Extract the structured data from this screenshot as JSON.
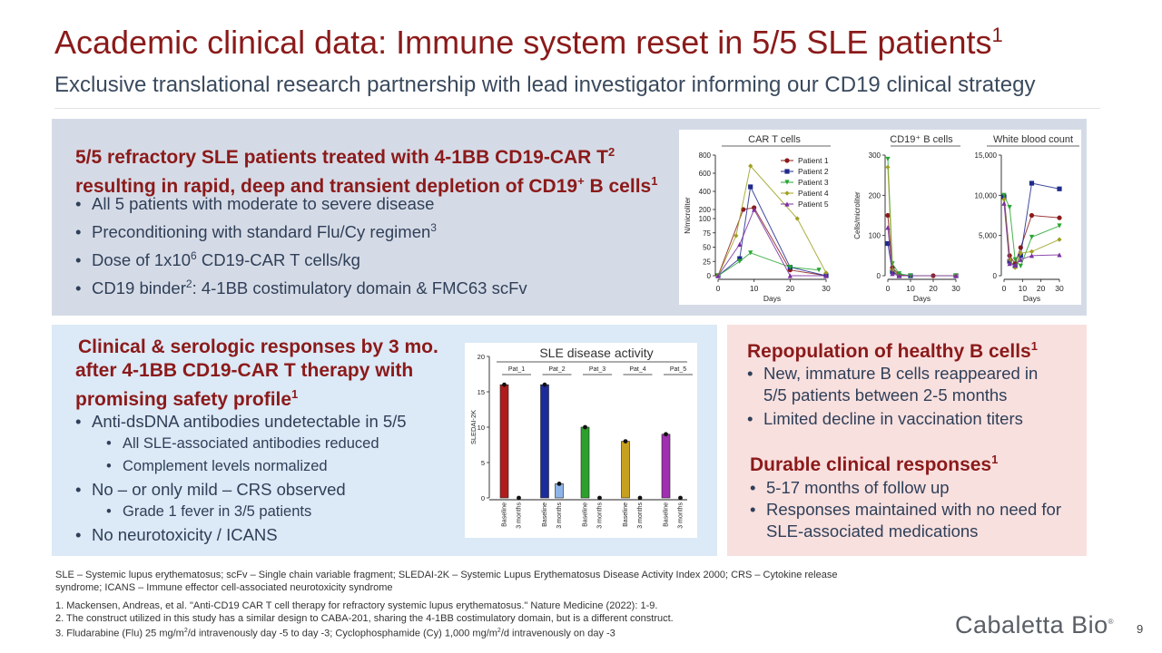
{
  "header": {
    "title": "Academic clinical data: Immune system reset in 5/5 SLE patients",
    "title_sup": "1",
    "subtitle": "Exclusive translational research partnership with lead investigator informing our CD19 clinical strategy"
  },
  "top_panel": {
    "heading_line1": "5/5 refractory SLE patients treated with 4-1BB CD19-CAR T",
    "heading_line1_sup": "2",
    "heading_line2_a": "resulting in rapid, deep and transient depletion of CD19",
    "heading_line2_sup_plus": "+",
    "heading_line2_b": " B cells",
    "heading_line2_sup": "1",
    "bullets": {
      "b1": "All 5 patients with moderate to severe disease",
      "b2": "Preconditioning with standard Flu/Cy regimen",
      "b2_sup": "3",
      "b3_a": "Dose of 1x10",
      "b3_sup": "6",
      "b3_b": " CD19-CAR T cells/kg",
      "b4_a": "CD19 binder",
      "b4_sup": "2",
      "b4_b": ": 4-1BB costimulatory domain & FMC63 scFv"
    }
  },
  "left_panel": {
    "heading_line1": "Clinical & serologic responses by 3 mo.",
    "heading_line2": "after 4-1BB CD19-CAR T therapy with",
    "heading_line3": "promising safety profile",
    "heading_sup": "1",
    "b1": "Anti-dsDNA antibodies undetectable in 5/5",
    "b1a": "All SLE-associated antibodies reduced",
    "b1b": "Complement levels normalized",
    "b2": "No – or only mild – CRS observed",
    "b2a": "Grade 1 fever in 3/5 patients",
    "b3": "No neurotoxicity / ICANS"
  },
  "right_panel": {
    "heading1": "Repopulation of healthy B cells",
    "heading1_sup": "1",
    "r1_line1": "New, immature B cells reappeared in",
    "r1_line2": "5/5 patients between 2-5 months",
    "r2": "Limited decline in vaccination titers",
    "heading2": "Durable clinical responses",
    "heading2_sup": "1",
    "d1": "5-17 months of follow up",
    "d2_line1": "Responses maintained with no need for",
    "d2_line2": "SLE-associated medications"
  },
  "footnotes": {
    "abbrev_line1": "SLE – Systemic lupus erythematosus; scFv – Single chain variable fragment; SLEDAI-2K – Systemic Lupus Erythematosus Disease Activity Index 2000; CRS – Cytokine release",
    "abbrev_line2": "syndrome; ICANS – Immune effector cell-associated neurotoxicity syndrome",
    "ref1": "1. Mackensen, Andreas, et al. \"Anti-CD19 CAR T cell therapy for refractory systemic lupus erythematosus.\" Nature Medicine (2022): 1-9.",
    "ref2": "2. The construct utilized in this study has a similar design to CABA-201, sharing the 4-1BB costimulatory domain, but is a different construct.",
    "ref3_a": "3. Fludarabine (Flu) 25 mg/m",
    "ref3_sup1": "2",
    "ref3_b": "/d intravenously day -5 to day -3; Cyclophosphamide (Cy) 1,000 mg/m",
    "ref3_sup2": "2",
    "ref3_c": "/d intravenously on day -3"
  },
  "logo": {
    "text": "Cabaletta Bio",
    "mark": "®"
  },
  "page_number": "9",
  "chart_data": [
    {
      "type": "line",
      "title": "CAR T cells",
      "xlabel": "Days",
      "ylabel": "N/microliter",
      "x_ticks": [
        "0",
        "10",
        "20",
        "30"
      ],
      "y_ticks": [
        "0",
        "25",
        "50",
        "75",
        "100",
        "200",
        "400",
        "600",
        "800"
      ],
      "legend": [
        "Patient 1",
        "Patient 2",
        "Patient 3",
        "Patient 4",
        "Patient 5"
      ],
      "note": "broken y axis: 0-100 linear lower segment, 100-800 upper segment",
      "series": [
        {
          "name": "Patient 1",
          "color": "#8b1a1a",
          "points": [
            [
              0,
              0
            ],
            [
              7,
              200
            ],
            [
              10,
              220
            ],
            [
              20,
              10
            ],
            [
              30,
              0
            ]
          ]
        },
        {
          "name": "Patient 2",
          "color": "#1f2a8c",
          "points": [
            [
              0,
              0
            ],
            [
              6,
              30
            ],
            [
              9,
              450
            ],
            [
              20,
              15
            ],
            [
              30,
              0
            ]
          ]
        },
        {
          "name": "Patient 3",
          "color": "#27a633",
          "points": [
            [
              0,
              0
            ],
            [
              6,
              25
            ],
            [
              9,
              40
            ],
            [
              20,
              15
            ],
            [
              28,
              10
            ]
          ]
        },
        {
          "name": "Patient 4",
          "color": "#a0a020",
          "points": [
            [
              0,
              0
            ],
            [
              5,
              70
            ],
            [
              9,
              680
            ],
            [
              22,
              100
            ],
            [
              30,
              5
            ]
          ]
        },
        {
          "name": "Patient 5",
          "color": "#7a2fa0",
          "points": [
            [
              0,
              0
            ],
            [
              6,
              55
            ],
            [
              10,
              200
            ],
            [
              20,
              0
            ],
            [
              30,
              0
            ]
          ]
        }
      ]
    },
    {
      "type": "line",
      "title": "CD19⁺ B cells",
      "xlabel": "Days",
      "ylabel": "Cells/microliter",
      "x_ticks": [
        "0",
        "10",
        "20",
        "30"
      ],
      "y_ticks": [
        "0",
        "100",
        "200",
        "300"
      ],
      "ylim": [
        0,
        300
      ],
      "series": [
        {
          "name": "Patient 1",
          "color": "#8b1a1a",
          "points": [
            [
              0,
              150
            ],
            [
              2,
              20
            ],
            [
              5,
              2
            ],
            [
              10,
              0
            ],
            [
              20,
              0
            ],
            [
              30,
              0
            ]
          ]
        },
        {
          "name": "Patient 2",
          "color": "#1f2a8c",
          "points": [
            [
              0,
              80
            ],
            [
              2,
              10
            ],
            [
              5,
              0
            ],
            [
              10,
              0
            ],
            [
              30,
              0
            ]
          ]
        },
        {
          "name": "Patient 3",
          "color": "#27a633",
          "points": [
            [
              0,
              290
            ],
            [
              2,
              30
            ],
            [
              5,
              5
            ],
            [
              10,
              0
            ],
            [
              30,
              0
            ]
          ]
        },
        {
          "name": "Patient 4",
          "color": "#a0a020",
          "points": [
            [
              0,
              270
            ],
            [
              2,
              15
            ],
            [
              5,
              0
            ],
            [
              30,
              0
            ]
          ]
        },
        {
          "name": "Patient 5",
          "color": "#7a2fa0",
          "points": [
            [
              0,
              120
            ],
            [
              2,
              5
            ],
            [
              5,
              0
            ],
            [
              30,
              0
            ]
          ]
        }
      ]
    },
    {
      "type": "line",
      "title": "White blood count",
      "xlabel": "Days",
      "ylabel": "",
      "x_ticks": [
        "0",
        "10",
        "20",
        "30"
      ],
      "y_ticks": [
        "0",
        "5,000",
        "10,000",
        "15,000"
      ],
      "ylim": [
        0,
        15000
      ],
      "series": [
        {
          "name": "Patient 1",
          "color": "#8b1a1a",
          "points": [
            [
              0,
              10000
            ],
            [
              3,
              2500
            ],
            [
              6,
              1500
            ],
            [
              9,
              3500
            ],
            [
              15,
              7500
            ],
            [
              30,
              7200
            ]
          ]
        },
        {
          "name": "Patient 2",
          "color": "#1f2a8c",
          "points": [
            [
              0,
              9800
            ],
            [
              3,
              1800
            ],
            [
              6,
              1200
            ],
            [
              9,
              2500
            ],
            [
              15,
              11500
            ],
            [
              30,
              10800
            ]
          ]
        },
        {
          "name": "Patient 3",
          "color": "#27a633",
          "points": [
            [
              0,
              10000
            ],
            [
              3,
              8500
            ],
            [
              6,
              2000
            ],
            [
              9,
              1200
            ],
            [
              15,
              4800
            ],
            [
              30,
              6200
            ]
          ]
        },
        {
          "name": "Patient 4",
          "color": "#a0a020",
          "points": [
            [
              0,
              9500
            ],
            [
              3,
              2000
            ],
            [
              6,
              1000
            ],
            [
              9,
              2800
            ],
            [
              15,
              3000
            ],
            [
              30,
              4500
            ]
          ]
        },
        {
          "name": "Patient 5",
          "color": "#7a2fa0",
          "points": [
            [
              0,
              9000
            ],
            [
              3,
              1500
            ],
            [
              6,
              1300
            ],
            [
              9,
              2000
            ],
            [
              15,
              2500
            ],
            [
              30,
              2600
            ]
          ]
        }
      ]
    },
    {
      "type": "bar",
      "title": "SLE disease activity",
      "xlabel": "",
      "ylabel": "SLEDAI-2K",
      "ylim": [
        0,
        20
      ],
      "y_ticks": [
        "0",
        "5",
        "10",
        "15",
        "20"
      ],
      "groups": [
        "Pat_1",
        "Pat_2",
        "Pat_3",
        "Pat_4",
        "Pat_5"
      ],
      "categories": [
        "Baseline",
        "3 months"
      ],
      "series": [
        {
          "name": "Pat_1",
          "color": "#b01c1c",
          "values": [
            16,
            0
          ]
        },
        {
          "name": "Pat_2",
          "color": "#1c2c9c",
          "values": [
            16,
            2
          ]
        },
        {
          "name": "Pat_3",
          "color": "#2ca02c",
          "values": [
            10,
            0
          ]
        },
        {
          "name": "Pat_4",
          "color": "#c8a020",
          "values": [
            8,
            0
          ]
        },
        {
          "name": "Pat_5",
          "color": "#a030b0",
          "values": [
            9,
            0
          ]
        }
      ]
    }
  ]
}
